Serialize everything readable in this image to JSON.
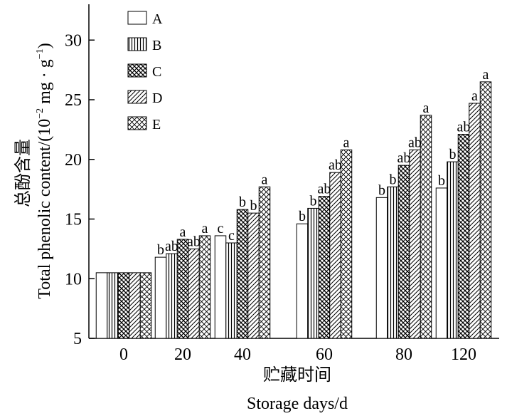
{
  "chart_data": {
    "type": "bar",
    "ylabel_cn": "总酚含量",
    "ylabel_en": "Total phenolic content/(10",
    "ylabel_exp": "−2",
    "ylabel_mid": " mg · g",
    "ylabel_exp2": "−1",
    "ylabel_end": ")",
    "xlabel_cn": "贮藏时间",
    "xlabel_en": "Storage days/d",
    "ylim": [
      5,
      33
    ],
    "yticks": [
      5,
      10,
      15,
      20,
      25,
      30
    ],
    "categories": [
      "0",
      "20",
      "40",
      "60",
      "80",
      "120"
    ],
    "legend_position": "top-left",
    "series": [
      {
        "name": "A",
        "pattern": "none",
        "values": [
          10.5,
          11.8,
          13.6,
          14.6,
          16.8,
          17.6
        ],
        "labels": [
          "",
          "b",
          "c",
          "b",
          "b",
          "b"
        ]
      },
      {
        "name": "B",
        "pattern": "vertical",
        "values": [
          10.5,
          12.1,
          13.0,
          15.9,
          17.7,
          19.8
        ],
        "labels": [
          "",
          "ab",
          "c",
          "b",
          "b",
          "b"
        ]
      },
      {
        "name": "C",
        "pattern": "crosshatch-dense",
        "values": [
          10.5,
          13.3,
          15.8,
          16.9,
          19.5,
          22.1
        ],
        "labels": [
          "",
          "a",
          "b",
          "ab",
          "ab",
          "ab"
        ]
      },
      {
        "name": "D",
        "pattern": "diagonal",
        "values": [
          10.5,
          12.5,
          15.5,
          18.9,
          20.8,
          24.7
        ],
        "labels": [
          "",
          "ab",
          "b",
          "ab",
          "ab",
          "a"
        ]
      },
      {
        "name": "E",
        "pattern": "crosshatch",
        "values": [
          10.5,
          13.6,
          17.7,
          20.8,
          23.7,
          26.5
        ],
        "labels": [
          "",
          "a",
          "a",
          "a",
          "a",
          "a"
        ]
      }
    ]
  }
}
